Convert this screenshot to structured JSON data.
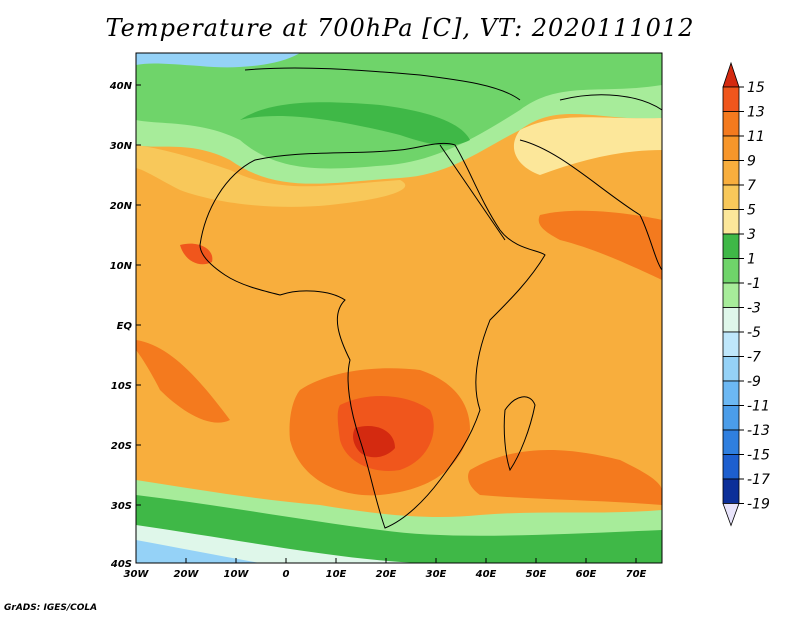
{
  "title": "Temperature at 700hPa [C], VT: 2020111012",
  "credit": "GrADS: IGES/COLA",
  "axes": {
    "lat_ticks": [
      "40N",
      "30N",
      "20N",
      "10N",
      "EQ",
      "10S",
      "20S",
      "30S",
      "40S"
    ],
    "lon_ticks": [
      "30W",
      "20W",
      "10W",
      "0",
      "10E",
      "20E",
      "30E",
      "40E",
      "50E",
      "60E",
      "70E"
    ],
    "lon_range": [
      -30,
      75
    ],
    "lat_range": [
      -40,
      45
    ]
  },
  "colorbar": {
    "labels": [
      "15",
      "13",
      "11",
      "9",
      "7",
      "5",
      "3",
      "1",
      "-1",
      "-3",
      "-5",
      "-7",
      "-9",
      "-11",
      "-13",
      "-15",
      "-17",
      "-19"
    ],
    "colors": [
      "#d42a10",
      "#f0561c",
      "#f47a1e",
      "#f7962a",
      "#f8ae3d",
      "#f8c85a",
      "#fce79a",
      "#3fb847",
      "#6fd46a",
      "#a7ec9a",
      "#dff7ea",
      "#bfe7fb",
      "#95d2f7",
      "#6cb8f3",
      "#4b9de9",
      "#2f7fdf",
      "#1d5fcf",
      "#0c2f99",
      "#0b1f7a"
    ]
  }
}
